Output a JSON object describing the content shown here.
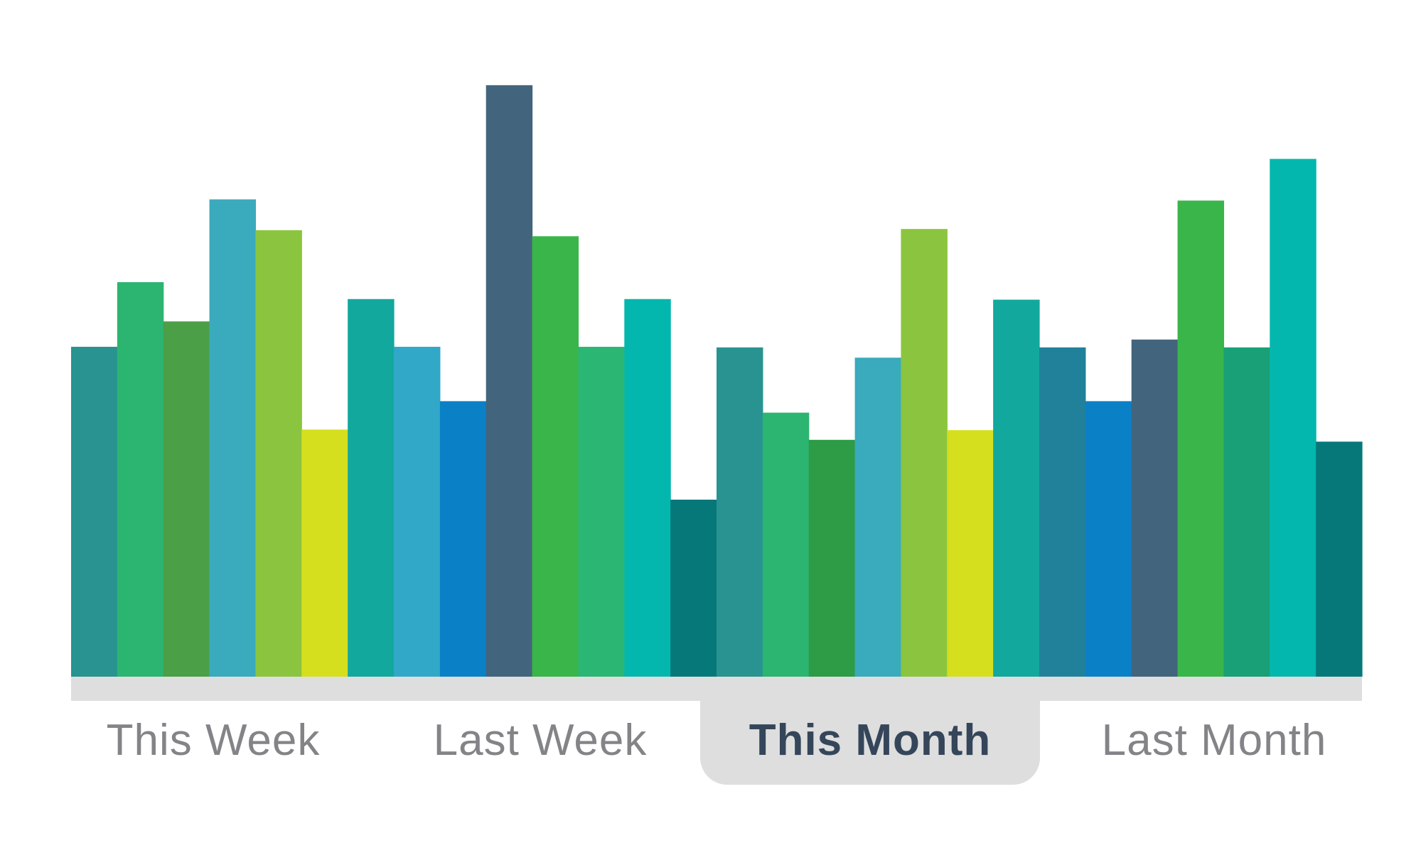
{
  "chart_data": {
    "type": "bar",
    "ylim": [
      0,
      100
    ],
    "grid": false,
    "values": [
      54.6,
      65.3,
      58.8,
      79.0,
      73.9,
      40.9,
      62.5,
      54.6,
      45.6,
      97.9,
      72.9,
      54.6,
      62.5,
      29.3,
      54.5,
      43.7,
      39.2,
      52.8,
      74.1,
      40.8,
      62.4,
      54.5,
      45.6,
      55.8,
      78.8,
      54.5,
      85.7,
      38.9
    ],
    "colors": [
      "#289390",
      "#2cb571",
      "#4b9f47",
      "#3aaabd",
      "#8bc53f",
      "#d5df1e",
      "#12a89d",
      "#31a8c8",
      "#0a80c6",
      "#43647d",
      "#3ab54a",
      "#2cb673",
      "#04b7ae",
      "#06787a",
      "#289390",
      "#2cb571",
      "#2e9b47",
      "#3aaabd",
      "#8bc53f",
      "#d5df1e",
      "#12a89d",
      "#21819a",
      "#0a80c6",
      "#43647d",
      "#3ab54a",
      "#19a077",
      "#04b7ae",
      "#06787a"
    ],
    "baseline_color": "#dedede"
  },
  "tabs": [
    {
      "label": "This Week",
      "active": false
    },
    {
      "label": "Last Week",
      "active": false
    },
    {
      "label": "This Month",
      "active": true
    },
    {
      "label": "Last Month",
      "active": false
    }
  ]
}
